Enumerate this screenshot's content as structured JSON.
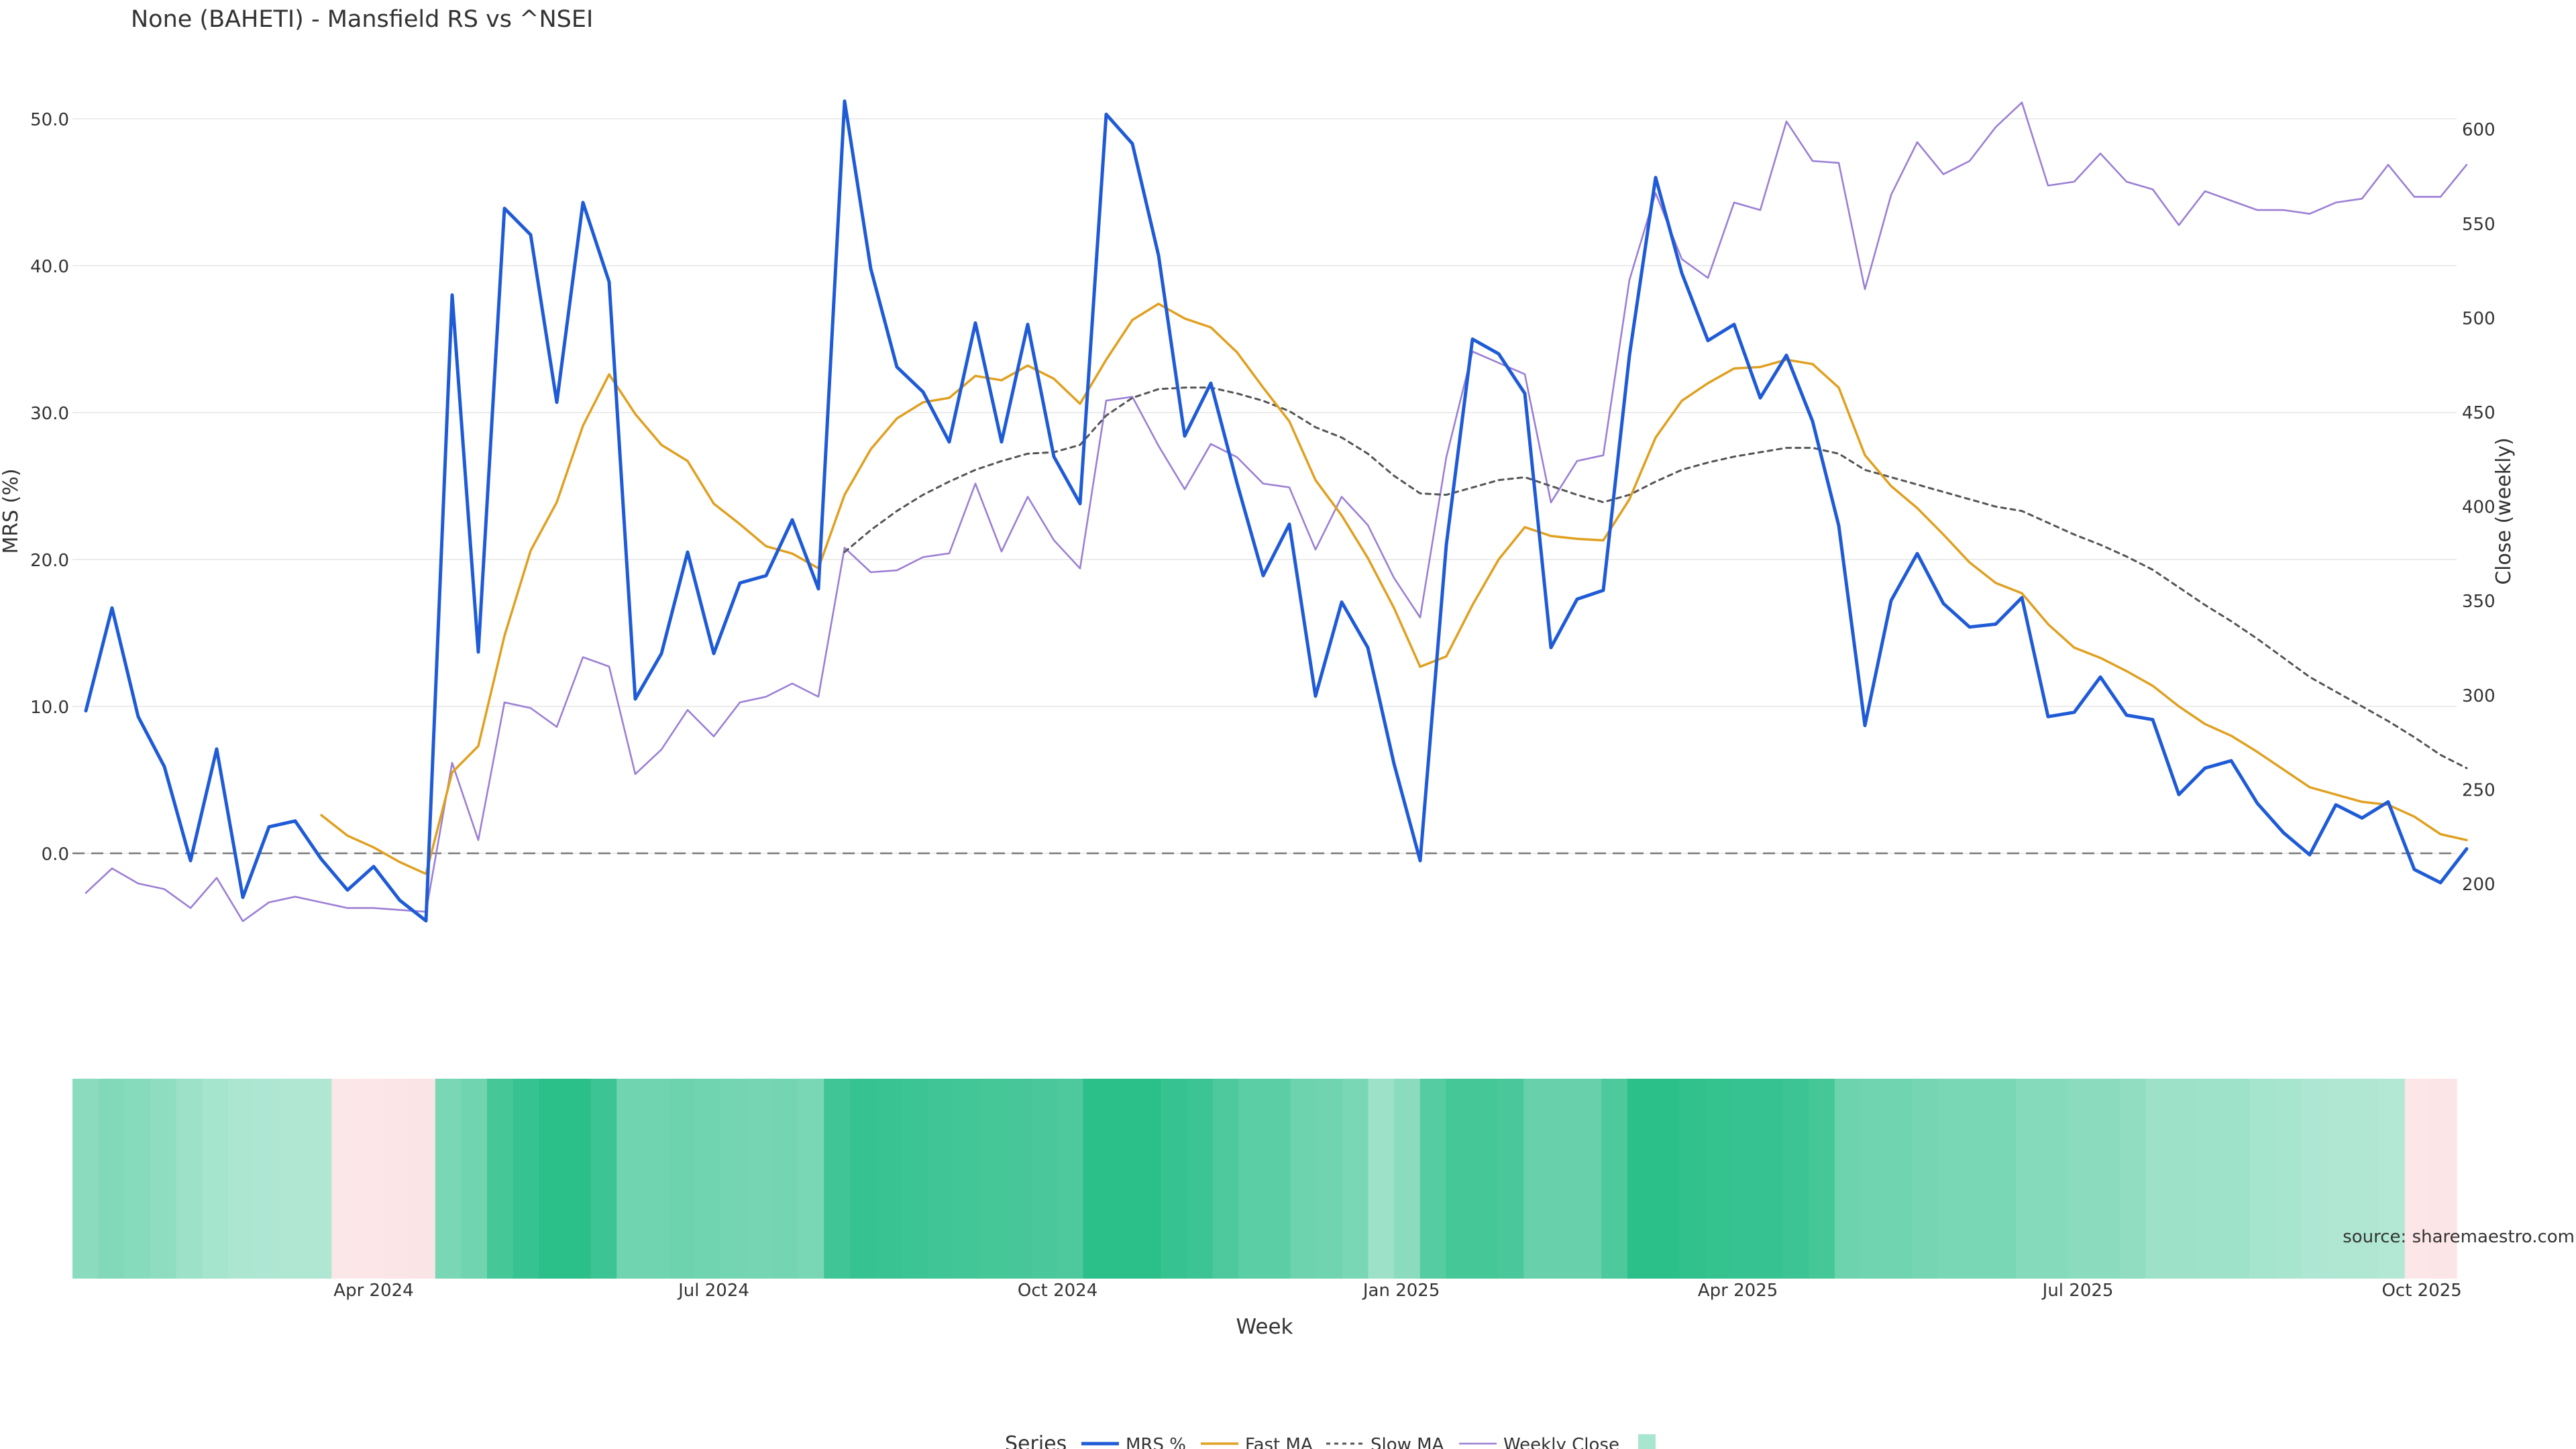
{
  "chart_data": {
    "type": "line",
    "title": "None (BAHETI) - Mansfield RS vs ^NSEI",
    "xlabel": "Week",
    "ylabel": "MRS (%)",
    "y2label": "Close (weekly)",
    "source": "source: sharemaestro.com",
    "x_start": "2024-01-15",
    "x_step_days": 7,
    "x_ticks": [
      "Apr 2024",
      "Jul 2024",
      "Oct 2024",
      "Jan 2025",
      "Apr 2025",
      "Jul 2025",
      "Oct 2025"
    ],
    "x_tick_dates": [
      "2024-04-01",
      "2024-07-01",
      "2024-10-01",
      "2025-01-01",
      "2025-04-01",
      "2025-07-01",
      "2025-10-01"
    ],
    "ylim": [
      -10,
      53
    ],
    "y_ticks": [
      "0.0",
      "10.0",
      "20.0",
      "30.0",
      "40.0",
      "50.0"
    ],
    "y2lim": [
      152,
      622
    ],
    "y2_ticks": [
      "200",
      "250",
      "300",
      "350",
      "400",
      "450",
      "500",
      "550",
      "600"
    ],
    "zero_line": 0,
    "legend": {
      "title": "Series",
      "items": [
        "MRS %",
        "Fast MA",
        "Slow MA",
        "Weekly Close",
        ""
      ]
    },
    "colors": {
      "mrs": "#1f5bd6",
      "fast": "#e0a020",
      "slow": "#555555",
      "close": "#9b7fd4",
      "heat_pos": "#2bbf8a",
      "heat_neg": "#fbe0e2"
    },
    "series": [
      {
        "name": "MRS %",
        "axis": "left",
        "values": [
          9.7,
          16.7,
          9.3,
          5.9,
          -0.5,
          7.1,
          -3.0,
          1.8,
          2.2,
          -0.4,
          -2.5,
          -0.9,
          -3.2,
          -4.6,
          38.0,
          13.7,
          43.9,
          42.1,
          30.7,
          44.3,
          38.9,
          10.5,
          13.6,
          20.5,
          13.6,
          18.4,
          18.9,
          22.7,
          18.0,
          51.2,
          39.8,
          33.1,
          31.4,
          28.0,
          36.1,
          28.0,
          36.0,
          27.0,
          23.8,
          50.3,
          48.3,
          40.7,
          28.4,
          32.0,
          25.2,
          18.9,
          22.4,
          10.7,
          17.1,
          14.0,
          6.1,
          -0.5,
          21.0,
          35.0,
          34.0,
          31.3,
          14.0,
          17.3,
          17.9,
          33.9,
          46.0,
          39.5,
          34.9,
          36.0,
          31.0,
          33.9,
          29.4,
          22.3,
          8.7,
          17.2,
          20.4,
          17.0,
          15.4,
          15.6,
          17.4,
          9.3,
          9.6,
          12.0,
          9.4,
          9.1,
          4.0,
          5.8,
          6.3,
          3.4,
          1.4,
          -0.1,
          3.3,
          2.4,
          3.5,
          -1.1,
          -2.0,
          0.3
        ]
      },
      {
        "name": "Fast MA",
        "axis": "left",
        "values": [
          null,
          null,
          null,
          null,
          null,
          null,
          null,
          null,
          null,
          2.6,
          1.2,
          0.4,
          -0.6,
          -1.4,
          5.5,
          7.3,
          14.8,
          20.6,
          23.9,
          29.1,
          32.6,
          29.9,
          27.8,
          26.7,
          23.8,
          22.4,
          20.9,
          20.4,
          19.4,
          24.4,
          27.5,
          29.6,
          30.7,
          31.0,
          32.5,
          32.2,
          33.2,
          32.3,
          30.6,
          33.6,
          36.3,
          37.4,
          36.4,
          35.8,
          34.1,
          31.7,
          29.4,
          25.4,
          23.0,
          20.1,
          16.7,
          12.7,
          13.4,
          16.9,
          20.0,
          22.2,
          21.6,
          21.4,
          21.3,
          24.1,
          28.3,
          30.8,
          32.0,
          33.0,
          33.1,
          33.6,
          33.3,
          31.7,
          27.1,
          25.0,
          23.5,
          21.7,
          19.8,
          18.4,
          17.7,
          15.6,
          14.0,
          13.3,
          12.4,
          11.4,
          10.0,
          8.8,
          8.0,
          6.9,
          5.7,
          4.5,
          4.0,
          3.5,
          3.3,
          2.5,
          1.3,
          0.9
        ]
      },
      {
        "name": "Slow MA",
        "axis": "left",
        "values": [
          null,
          null,
          null,
          null,
          null,
          null,
          null,
          null,
          null,
          null,
          null,
          null,
          null,
          null,
          null,
          null,
          null,
          null,
          null,
          null,
          null,
          null,
          null,
          null,
          null,
          null,
          null,
          null,
          null,
          20.5,
          22.0,
          23.3,
          24.4,
          25.3,
          26.1,
          26.7,
          27.2,
          27.3,
          27.8,
          29.8,
          31.0,
          31.6,
          31.7,
          31.7,
          31.3,
          30.8,
          30.1,
          29.0,
          28.3,
          27.2,
          25.7,
          24.5,
          24.4,
          24.9,
          25.4,
          25.6,
          25.0,
          24.4,
          23.9,
          24.4,
          25.3,
          26.1,
          26.6,
          27.0,
          27.3,
          27.6,
          27.6,
          27.2,
          26.1,
          25.6,
          25.1,
          24.6,
          24.1,
          23.6,
          23.3,
          22.5,
          21.7,
          21.0,
          20.2,
          19.3,
          18.1,
          16.9,
          15.8,
          14.6,
          13.3,
          12.0,
          11.0,
          10.0,
          9.0,
          7.9,
          6.7,
          5.8
        ]
      },
      {
        "name": "Weekly Close",
        "axis": "right",
        "values": [
          195,
          208,
          200,
          197,
          187,
          203,
          180,
          190,
          193,
          190,
          187,
          187,
          186,
          185,
          264,
          223,
          296,
          293,
          283,
          320,
          315,
          258,
          271,
          292,
          278,
          296,
          299,
          306,
          299,
          378,
          365,
          366,
          373,
          375,
          412,
          376,
          405,
          382,
          367,
          456,
          458,
          432,
          409,
          433,
          426,
          412,
          410,
          377,
          405,
          390,
          362,
          341,
          426,
          482,
          476,
          470,
          402,
          424,
          427,
          520,
          566,
          531,
          521,
          561,
          557,
          604,
          583,
          582,
          515,
          565,
          593,
          576,
          583,
          601,
          614,
          570,
          572,
          587,
          572,
          568,
          549,
          567,
          562,
          557,
          557,
          555,
          561,
          563,
          581,
          564,
          564,
          581
        ]
      }
    ],
    "heatmap_strip": {
      "values": [
        0.45,
        0.5,
        0.47,
        0.43,
        0.35,
        0.3,
        0.26,
        0.25,
        0.24,
        0.24,
        -0.3,
        -0.4,
        -0.5,
        -0.6,
        0.55,
        0.6,
        0.85,
        0.93,
        1.0,
        1.0,
        0.9,
        0.6,
        0.6,
        0.62,
        0.6,
        0.58,
        0.57,
        0.58,
        0.55,
        0.88,
        0.93,
        0.92,
        0.9,
        0.88,
        0.86,
        0.85,
        0.84,
        0.82,
        0.8,
        1.0,
        1.0,
        1.0,
        0.93,
        0.9,
        0.8,
        0.72,
        0.72,
        0.62,
        0.6,
        0.55,
        0.35,
        0.45,
        0.75,
        0.85,
        0.85,
        0.82,
        0.65,
        0.65,
        0.65,
        0.8,
        1.0,
        1.0,
        0.97,
        0.95,
        0.93,
        0.93,
        0.9,
        0.85,
        0.62,
        0.6,
        0.6,
        0.57,
        0.55,
        0.55,
        0.55,
        0.48,
        0.48,
        0.45,
        0.45,
        0.42,
        0.35,
        0.35,
        0.34,
        0.33,
        0.3,
        0.28,
        0.25,
        0.24,
        0.24,
        0.22,
        -0.4,
        -0.45
      ]
    }
  }
}
